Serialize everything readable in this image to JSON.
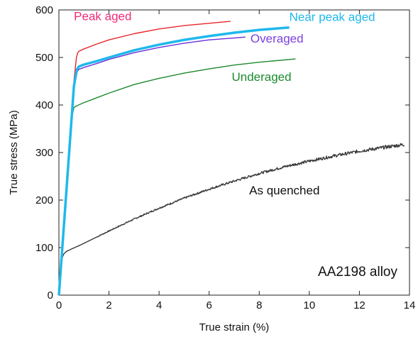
{
  "chart_data": {
    "type": "line",
    "title": "",
    "xlabel": "True strain (%)",
    "ylabel": "True stress (MPa)",
    "xlim": [
      0,
      14
    ],
    "ylim": [
      0,
      600
    ],
    "xticks": [
      0,
      2,
      4,
      6,
      8,
      10,
      12,
      14
    ],
    "yticks": [
      0,
      100,
      200,
      300,
      400,
      500,
      600
    ],
    "annotation": "AA2198 alloy",
    "grid": false,
    "legend": "none",
    "series": [
      {
        "name": "Peak aged",
        "color": "#e8262b",
        "label_color": "#ef2b7a",
        "x": [
          0,
          0.3,
          0.6,
          0.7,
          0.75,
          0.8,
          1,
          1.5,
          2,
          3,
          4,
          5,
          6,
          6.85
        ],
        "y": [
          0,
          230,
          450,
          500,
          510,
          513,
          518,
          528,
          537,
          550,
          560,
          567,
          572,
          576
        ]
      },
      {
        "name": "Near peak aged",
        "color": "#1fb8ec",
        "label_color": "#1fb8ec",
        "x": [
          0,
          0.3,
          0.6,
          0.72,
          0.8,
          1,
          1.5,
          2,
          3,
          4,
          5,
          6,
          7,
          8,
          9.2
        ],
        "y": [
          0,
          220,
          440,
          475,
          481,
          485,
          492,
          500,
          515,
          527,
          537,
          545,
          552,
          558,
          563
        ]
      },
      {
        "name": "Overaged",
        "color": "#6a2fd6",
        "label_color": "#7b3fe0",
        "x": [
          0,
          0.3,
          0.6,
          0.72,
          0.8,
          1,
          1.5,
          2,
          3,
          4,
          5,
          6,
          7,
          7.45
        ],
        "y": [
          0,
          220,
          435,
          470,
          475,
          479,
          487,
          496,
          510,
          521,
          530,
          537,
          541,
          543
        ]
      },
      {
        "name": "Underaged",
        "color": "#1c8a2e",
        "label_color": "#1c8a2e",
        "x": [
          0,
          0.3,
          0.5,
          0.6,
          0.7,
          1,
          1.5,
          2,
          3,
          4,
          5,
          6,
          7,
          8,
          9.45
        ],
        "y": [
          0,
          210,
          370,
          395,
          398,
          405,
          415,
          425,
          443,
          456,
          467,
          476,
          484,
          490,
          497
        ]
      },
      {
        "name": "As quenched",
        "color": "#3a3a3a",
        "label_color": "#111111",
        "x": [
          0,
          0.05,
          0.1,
          0.2,
          0.3,
          0.5,
          0.8,
          1,
          2,
          3,
          4,
          5,
          6,
          7,
          8,
          9,
          10,
          11,
          12,
          13,
          13.8
        ],
        "y": [
          0,
          55,
          75,
          87,
          92,
          97,
          104,
          109,
          135,
          160,
          183,
          204,
          223,
          240,
          256,
          270,
          282,
          293,
          303,
          311,
          317
        ]
      }
    ]
  }
}
